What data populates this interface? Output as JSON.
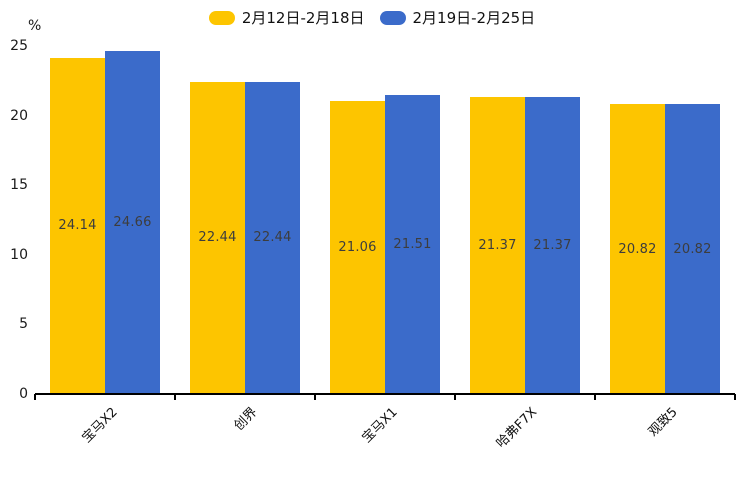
{
  "chart_data": {
    "type": "bar",
    "categories": [
      "宝马X2",
      "创界",
      "宝马X1",
      "哈弗F7X",
      "观致5"
    ],
    "series": [
      {
        "name": "2月12日-2月18日",
        "color": "#FDC500",
        "values": [
          24.14,
          22.44,
          21.06,
          21.37,
          20.82
        ]
      },
      {
        "name": "2月19日-2月25日",
        "color": "#3B6BCA",
        "values": [
          24.66,
          22.44,
          21.51,
          21.37,
          20.82
        ]
      }
    ],
    "unit_label": "%",
    "yticks": [
      0,
      5,
      10,
      15,
      20,
      25
    ],
    "ylim": [
      0,
      25
    ],
    "grid": false,
    "legend_position": "top",
    "value_labels": true
  },
  "colors": {
    "axis": "#000000",
    "tick_text": "#1a1a1a",
    "value_label_text": "#3d3d3d",
    "background": "#ffffff"
  }
}
